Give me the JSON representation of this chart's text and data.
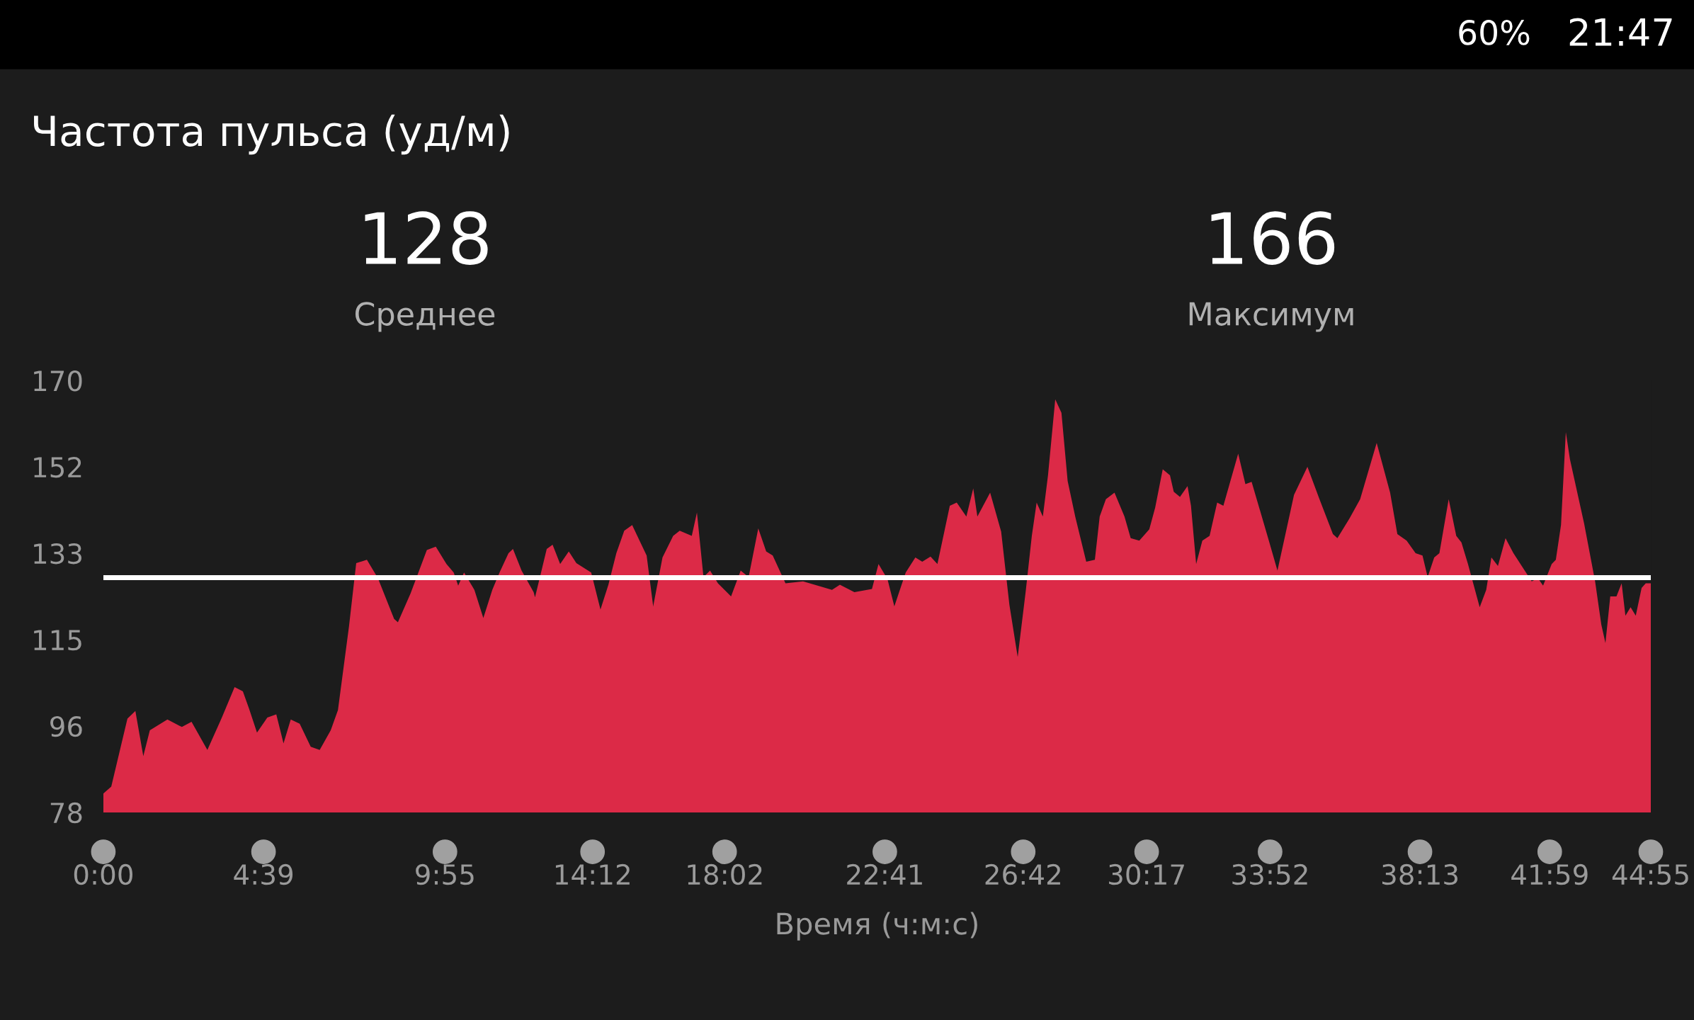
{
  "chart_data": {
    "type": "area",
    "title": "Частота пульса (уд/м)",
    "xlabel": "Время (ч:м:с)",
    "annotations": [
      "128",
      "Среднее",
      "166",
      "Максимум",
      "60%",
      "21:47"
    ],
    "x": [
      0,
      0.23,
      0.7,
      0.93,
      1.16,
      1.35,
      1.86,
      2.28,
      2.56,
      3.02,
      3.44,
      3.81,
      4.05,
      4.23,
      4.46,
      4.76,
      5.02,
      5.23,
      5.44,
      5.7,
      6.02,
      6.28,
      6.6,
      6.81,
      7.13,
      7.34,
      7.65,
      7.97,
      8.44,
      8.55,
      8.92,
      9.39,
      9.65,
      9.96,
      10.17,
      10.3,
      10.47,
      10.77,
      11.03,
      11.29,
      11.5,
      11.76,
      11.89,
      12.14,
      12.49,
      12.53,
      12.87,
      13.04,
      13.26,
      13.51,
      13.73,
      14.16,
      14.43,
      14.66,
      14.89,
      15.12,
      15.35,
      15.77,
      15.96,
      16.23,
      16.54,
      16.73,
      17.08,
      17.23,
      17.42,
      17.61,
      17.84,
      18.22,
      18.5,
      18.73,
      19.01,
      19.24,
      19.43,
      19.8,
      20.31,
      20.82,
      21.15,
      21.38,
      21.8,
      22.31,
      22.5,
      22.76,
      22.96,
      23.29,
      23.57,
      23.77,
      24.01,
      24.21,
      24.57,
      24.77,
      25.05,
      25.25,
      25.37,
      25.74,
      26.06,
      26.3,
      26.54,
      26.77,
      26.95,
      27.09,
      27.27,
      27.42,
      27.63,
      27.81,
      27.99,
      28.21,
      28.53,
      28.78,
      28.92,
      29.1,
      29.35,
      29.64,
      29.82,
      30.07,
      30.36,
      30.53,
      30.75,
      30.96,
      31.07,
      31.25,
      31.47,
      31.57,
      31.72,
      31.9,
      32.11,
      32.33,
      32.51,
      32.94,
      33.15,
      33.33,
      33.83,
      34.08,
      34.56,
      34.95,
      35.3,
      35.69,
      35.82,
      36.17,
      36.48,
      36.96,
      37.35,
      37.56,
      37.83,
      38.09,
      38.29,
      38.44,
      38.63,
      38.78,
      39.05,
      39.27,
      39.42,
      39.61,
      39.95,
      40.14,
      40.29,
      40.48,
      40.7,
      40.93,
      41.46,
      41.64,
      41.79,
      42.04,
      42.16,
      42.31,
      42.45,
      42.57,
      42.98,
      43.3,
      43.48,
      43.6,
      43.74,
      43.92,
      44.07,
      44.18,
      44.33,
      44.48,
      44.65,
      44.77,
      44.9167
    ],
    "values": [
      82,
      83.5,
      98,
      99.6,
      90,
      95.5,
      97.8,
      96.2,
      97.3,
      91.3,
      98.2,
      104.7,
      103.8,
      100.1,
      95,
      98.2,
      98.9,
      92.7,
      97.8,
      96.9,
      92,
      91.3,
      95.5,
      99.8,
      117.6,
      131.1,
      131.8,
      127.9,
      119.2,
      118.5,
      124.7,
      133.9,
      134.6,
      130.9,
      129.1,
      126.3,
      129.1,
      125.4,
      119.4,
      125.4,
      129.1,
      133.2,
      134.1,
      129.5,
      124.9,
      123.8,
      134.1,
      135,
      130.9,
      133.6,
      131.1,
      129.1,
      121.2,
      126.5,
      133.2,
      138,
      139.2,
      132.7,
      121.9,
      132.3,
      136.9,
      138,
      136.9,
      141.9,
      128.1,
      129.5,
      126.8,
      124,
      129.5,
      128.1,
      138.5,
      133.6,
      132.7,
      126.8,
      127.2,
      126.1,
      125.4,
      126.5,
      124.9,
      125.6,
      130.9,
      127.7,
      121.9,
      129.1,
      132.3,
      131.4,
      132.5,
      130.9,
      143.3,
      144,
      141,
      147,
      141,
      146.1,
      137.8,
      122.2,
      111.1,
      124.9,
      136.9,
      144,
      141,
      149.8,
      166,
      163.1,
      148.6,
      141,
      131.4,
      131.8,
      141,
      144.7,
      146.1,
      141,
      136.4,
      135.9,
      138.3,
      142.9,
      151.1,
      149.8,
      146.3,
      145.2,
      147.5,
      143.3,
      130.9,
      135.9,
      136.9,
      144,
      143.3,
      154.4,
      147.9,
      148.4,
      135.9,
      129.5,
      145.6,
      151.6,
      144.7,
      137.3,
      136.4,
      140.6,
      144.7,
      156.7,
      146.1,
      137.3,
      135.9,
      133.2,
      132.7,
      128.1,
      132.3,
      133.2,
      144.7,
      136.9,
      135.5,
      130.9,
      121.7,
      125.4,
      132.3,
      130.5,
      136.4,
      133.2,
      127.2,
      127.9,
      126.3,
      130.9,
      131.8,
      139.2,
      159,
      153.2,
      139.6,
      127.2,
      118,
      114.1,
      124,
      124,
      126.8,
      119.9,
      121.7,
      119.9,
      125.8,
      126.8,
      126.8
    ],
    "color": "#dc2a47",
    "xlim": [
      0,
      44.9167
    ],
    "xticks": [
      {
        "value": 0,
        "label": "0:00"
      },
      {
        "value": 4.65,
        "label": "4:39"
      },
      {
        "value": 9.9167,
        "label": "9:55"
      },
      {
        "value": 14.2,
        "label": "14:12"
      },
      {
        "value": 18.0333,
        "label": "18:02"
      },
      {
        "value": 22.6833,
        "label": "22:41"
      },
      {
        "value": 26.7,
        "label": "26:42"
      },
      {
        "value": 30.2833,
        "label": "30:17"
      },
      {
        "value": 33.8667,
        "label": "33:52"
      },
      {
        "value": 38.2167,
        "label": "38:13"
      },
      {
        "value": 41.9833,
        "label": "41:59"
      },
      {
        "value": 44.9167,
        "label": "44:55"
      }
    ],
    "ylim": [
      78,
      170
    ],
    "yticks": [
      78,
      {
        "value": 96.4,
        "label": "96"
      },
      {
        "value": 114.8,
        "label": "115"
      },
      {
        "value": 133.2,
        "label": "133"
      },
      {
        "value": 151.6,
        "label": "152"
      },
      170
    ],
    "ref_lines": [
      {
        "axis": "y",
        "value": 128,
        "color": "#ffffff"
      }
    ],
    "grid": false,
    "legend": false
  }
}
